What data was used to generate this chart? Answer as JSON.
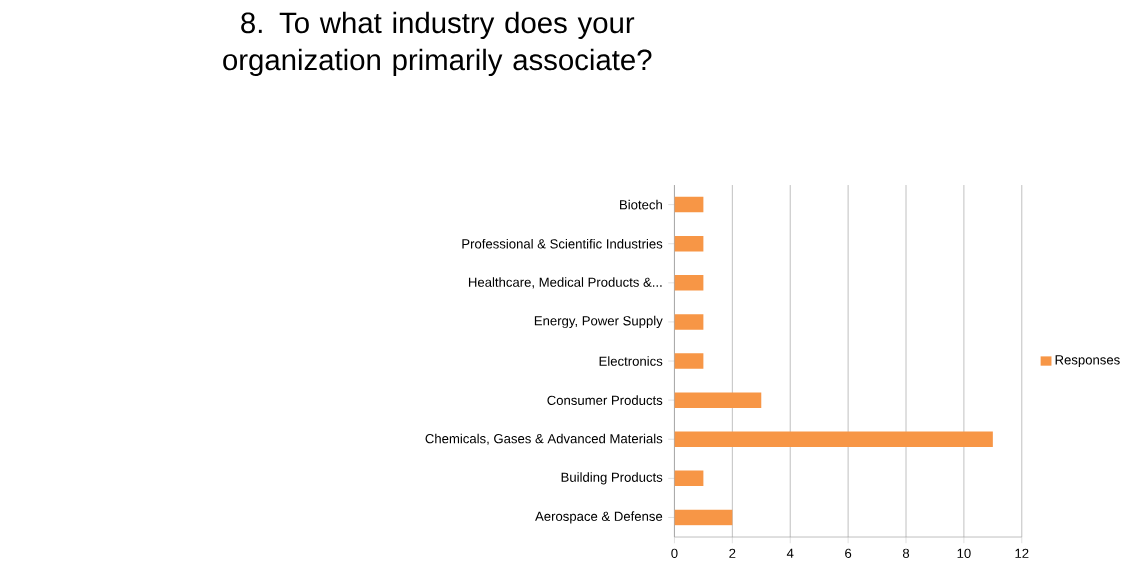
{
  "chart_data": {
    "type": "bar",
    "orientation": "horizontal",
    "title": "8. To what industry does your organization primarily associate?",
    "categories": [
      "Biotech",
      "Professional & Scientific Industries",
      "Healthcare, Medical Products &...",
      "Energy, Power Supply",
      "Electronics",
      "Consumer Products",
      "Chemicals, Gases & Advanced Materials",
      "Building Products",
      "Aerospace & Defense"
    ],
    "series": [
      {
        "name": "Responses",
        "color": "#f79646",
        "values": [
          1,
          1,
          1,
          1,
          1,
          3,
          11,
          1,
          2
        ]
      }
    ],
    "xlim": [
      0,
      12
    ],
    "xticks": [
      0,
      2,
      4,
      6,
      8,
      10,
      12
    ],
    "grid": "x",
    "legend": "right"
  }
}
